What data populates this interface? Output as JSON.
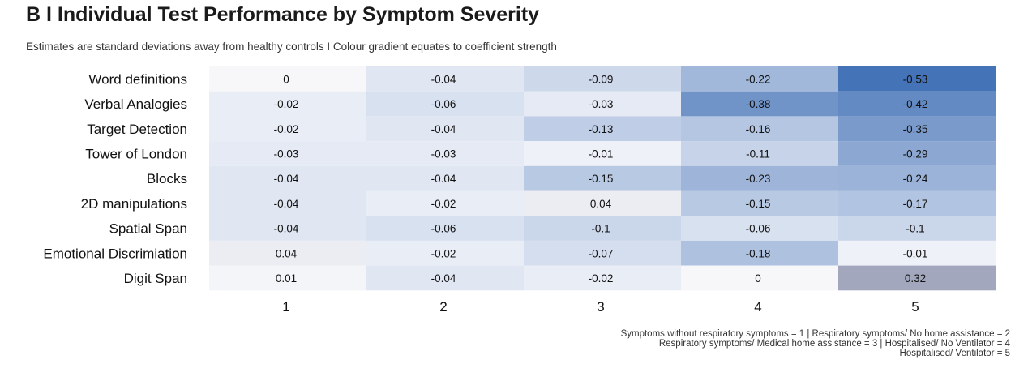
{
  "title": "B I Individual Test Performance by Symptom Severity",
  "subtitle": "Estimates are standard deviations away from healthy controls I Colour gradient equates to coefficient strength",
  "caption": {
    "line1": "Symptoms without respiratory symptoms = 1 | Respiratory symptoms/ No home assistance = 2",
    "line2": "Respiratory symptoms/ Medical home assistance = 3 | Hospitalised/ No Ventilator = 4",
    "line3": "Hospitalised/ Ventilator = 5"
  },
  "colors": {
    "negative": "#3f6fb5",
    "positive": "#9aa0b8",
    "neutral": "#ffffff"
  },
  "chart_data": {
    "type": "heatmap",
    "rows": [
      "Word definitions",
      "Verbal Analogies",
      "Target Detection",
      "Tower of London",
      "Blocks",
      "2D manipulations",
      "Spatial Span",
      "Emotional Discrimiation",
      "Digit Span"
    ],
    "columns": [
      "1",
      "2",
      "3",
      "4",
      "5"
    ],
    "values": [
      [
        0,
        -0.04,
        -0.09,
        -0.22,
        -0.53
      ],
      [
        -0.02,
        -0.06,
        -0.03,
        -0.38,
        -0.42
      ],
      [
        -0.02,
        -0.04,
        -0.13,
        -0.16,
        -0.35
      ],
      [
        -0.03,
        -0.03,
        -0.01,
        -0.11,
        -0.29
      ],
      [
        -0.04,
        -0.04,
        -0.15,
        -0.23,
        -0.24
      ],
      [
        -0.04,
        -0.02,
        0.04,
        -0.15,
        -0.17
      ],
      [
        -0.04,
        -0.06,
        -0.1,
        -0.06,
        -0.1
      ],
      [
        0.04,
        -0.02,
        -0.07,
        -0.18,
        -0.01
      ],
      [
        0.01,
        -0.04,
        -0.02,
        0,
        0.32
      ]
    ],
    "labels": [
      [
        "0",
        "-0.04",
        "-0.09",
        "-0.22",
        "-0.53"
      ],
      [
        "-0.02",
        "-0.06",
        "-0.03",
        "-0.38",
        "-0.42"
      ],
      [
        "-0.02",
        "-0.04",
        "-0.13",
        "-0.16",
        "-0.35"
      ],
      [
        "-0.03",
        "-0.03",
        "-0.01",
        "-0.11",
        "-0.29"
      ],
      [
        "-0.04",
        "-0.04",
        "-0.15",
        "-0.23",
        "-0.24"
      ],
      [
        "-0.04",
        "-0.02",
        "0.04",
        "-0.15",
        "-0.17"
      ],
      [
        "-0.04",
        "-0.06",
        "-0.1",
        "-0.06",
        "-0.1"
      ],
      [
        "0.04",
        "-0.02",
        "-0.07",
        "-0.18",
        "-0.01"
      ],
      [
        "0.01",
        "-0.04",
        "-0.02",
        "0",
        "0.32"
      ]
    ],
    "color_scale_range": [
      -0.55,
      0.35
    ],
    "legend": "none"
  }
}
